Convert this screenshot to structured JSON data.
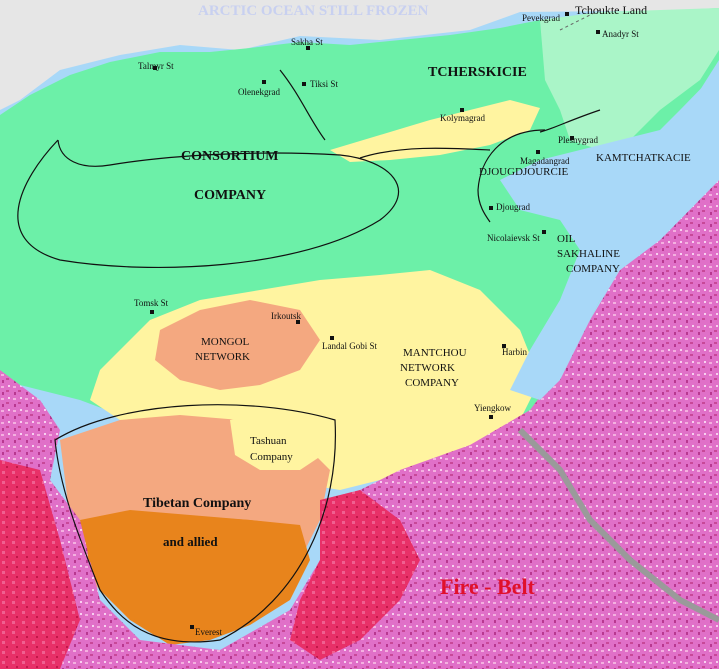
{
  "map": {
    "colors": {
      "tundra": "#6cf0a8",
      "pale_green": "#aaf5c8",
      "ocean": "#a8d8f8",
      "ice": "#e8e8e8",
      "yellow": "#fff4a0",
      "salmon": "#f4a880",
      "orange": "#e8841c",
      "fire_pink": "#e850b0",
      "fire_red": "#e8204a",
      "grey_road": "#999999",
      "fire_text": "#e0102a"
    },
    "ocean_label": "ARCTIC OCEAN STILL FROZEN",
    "fire_belt_label": "Fire - Belt",
    "regions": {
      "tcherskicie": "TCHERSKICIE",
      "consortium_line1": "CONSORTIUM",
      "consortium_line2": "COMPANY",
      "djougdjourcie": "DJOUGDJOURCIE",
      "kamtchatkacie": "KAMTCHATKACIE",
      "oil_line1": "OIL",
      "oil_line2": "SAKHALINE",
      "oil_line3": "COMPANY",
      "mongol_line1": "MONGOL",
      "mongol_line2": "NETWORK",
      "mantchou_line1": "MANTCHOU",
      "mantchou_line2": "NETWORK",
      "mantchou_line3": "COMPANY",
      "tashuan_line1": "Tashuan",
      "tashuan_line2": "Company",
      "tibetan_line1": "Tibetan Company",
      "tibetan_line2": "and allied"
    },
    "cities": {
      "tchoukte": "Tchoukte Land",
      "pevekgrad": "Pevekgrad",
      "anadyr": "Anadyr St",
      "sakha": "Sakha St",
      "talmyr": "Talmyr St",
      "tiksi": "Tiksi St",
      "olenekgrad": "Olenekgrad",
      "kolymagrad": "Kolymagrad",
      "plesnygrad": "Plesnygrad",
      "magadangrad": "Magadangrad",
      "djougrad": "Djougrad",
      "nicolaievsk": "Nicolaievsk St",
      "tomsk": "Tomsk St",
      "irkoutsk": "Irkoutsk",
      "landal": "Landal Gobi St",
      "harbin": "Harbin",
      "yiengkow": "Yiengkow",
      "everest": "Everest"
    }
  }
}
